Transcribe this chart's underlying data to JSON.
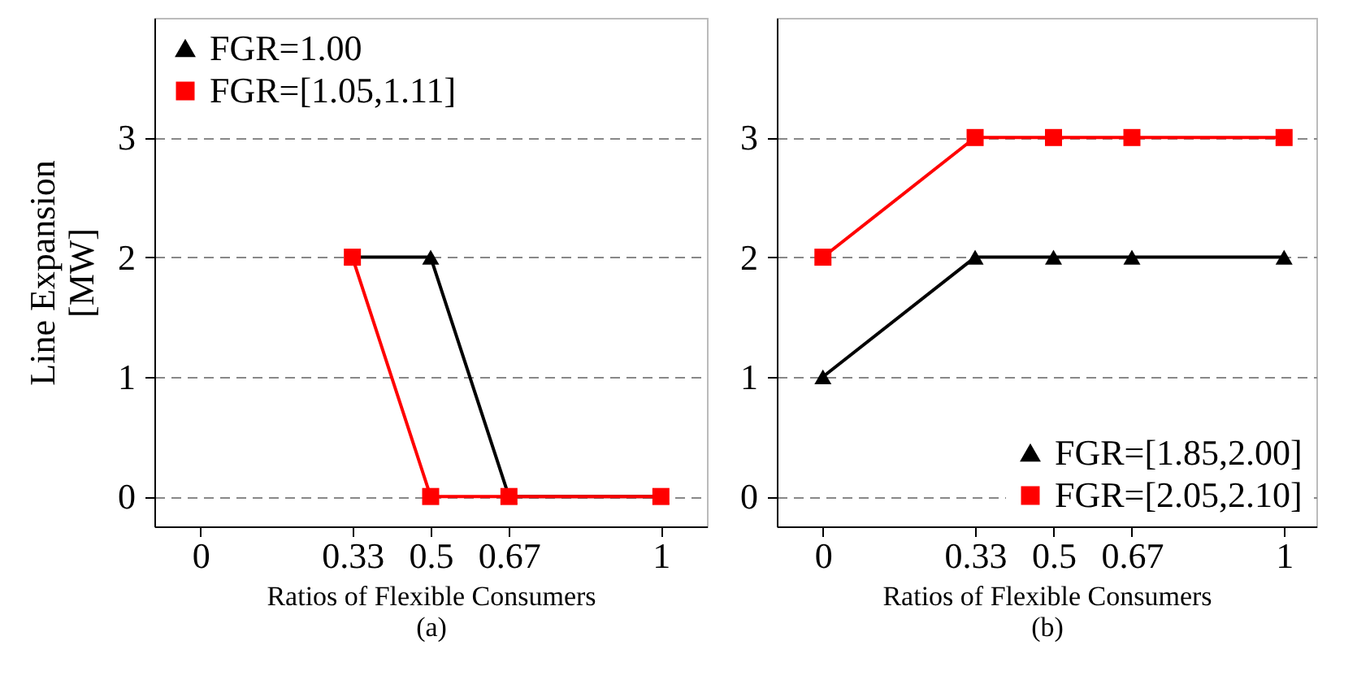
{
  "chart_data": [
    {
      "type": "line",
      "xlabel": "Ratios of Flexible Consumers",
      "ylabel": "Line Expansion\n[MW]",
      "annotations": [
        "(a)"
      ],
      "xlim": [
        -0.1,
        1.1
      ],
      "xticks": [
        0,
        0.33,
        0.5,
        0.67,
        1
      ],
      "ylim": [
        -0.25,
        4
      ],
      "yticks": [
        0,
        1,
        2,
        3
      ],
      "grid": "y",
      "legend": "top left",
      "line_style": "solid",
      "x": [
        0.33,
        0.5,
        0.67,
        1
      ],
      "series": [
        {
          "name": "FGR=1.00",
          "color": "#000000",
          "marker": "triangle",
          "values": [
            2,
            2,
            0,
            0
          ]
        },
        {
          "name": "FGR=[1.05,1.11]",
          "color": "#ff0000",
          "marker": "square",
          "values": [
            2,
            0,
            0,
            0
          ]
        }
      ]
    },
    {
      "type": "line",
      "xlabel": "Ratios of Flexible Consumers",
      "annotations": [
        "(b)"
      ],
      "xlim": [
        -0.1,
        1.07
      ],
      "xticks": [
        0,
        0.33,
        0.5,
        0.67,
        1
      ],
      "ylim": [
        -0.25,
        4
      ],
      "yticks": [
        0,
        1,
        2,
        3
      ],
      "grid": "y",
      "legend": "bottom right",
      "line_style": "solid",
      "x": [
        0,
        0.33,
        0.5,
        0.67,
        1
      ],
      "series": [
        {
          "name": "FGR=[1.85,2.00]",
          "color": "#000000",
          "marker": "triangle",
          "values": [
            1,
            2,
            2,
            2,
            2
          ]
        },
        {
          "name": "FGR=[2.05,2.10]",
          "color": "#ff0000",
          "marker": "square",
          "values": [
            2,
            3,
            3,
            3,
            3
          ]
        }
      ]
    }
  ]
}
